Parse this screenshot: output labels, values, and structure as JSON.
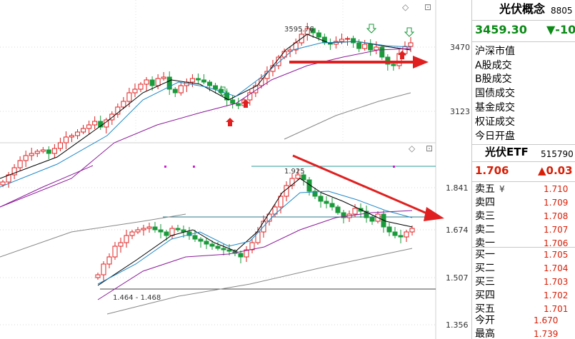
{
  "main_chart": {
    "high_label": "3595.76",
    "price_ticks": [
      "3470",
      "3123"
    ]
  },
  "etf_chart": {
    "high_label": "1.925",
    "low_label": "1.464 - 1.468",
    "price_ticks": [
      "1.841",
      "1.674",
      "1.507",
      "1.356"
    ]
  },
  "controls": {
    "diamond": "◇",
    "close": "⊡"
  },
  "panel": {
    "index_name": "光伏概念",
    "index_code": "8805",
    "index_price": "3459.30",
    "index_change": "▼-10",
    "stats": [
      "沪深市值",
      "A股成交",
      "B股成交",
      "国债成交",
      "基金成交",
      "权证成交"
    ],
    "open_label": "今日开盘",
    "etf_name": "光伏ETF",
    "etf_code": "515790",
    "etf_price": "1.706",
    "etf_change": "▲0.03",
    "sell": [
      {
        "label": "卖五",
        "price": "1.710",
        "mark": "¥"
      },
      {
        "label": "卖四",
        "price": "1.709"
      },
      {
        "label": "卖三",
        "price": "1.708"
      },
      {
        "label": "卖二",
        "price": "1.707"
      },
      {
        "label": "卖一",
        "price": "1.706"
      }
    ],
    "buy": [
      {
        "label": "买一",
        "price": "1.705"
      },
      {
        "label": "买二",
        "price": "1.704"
      },
      {
        "label": "买三",
        "price": "1.703"
      },
      {
        "label": "买四",
        "price": "1.702"
      },
      {
        "label": "买五",
        "price": "1.701"
      }
    ],
    "today_open_label": "今开",
    "today_open_value": "1.670",
    "today_high_label": "最高",
    "today_high_value": "1.739"
  },
  "colors": {
    "up": "#e02020",
    "down": "#1a9a3a",
    "ma5": "#000000",
    "ma10": "#1e88c8",
    "ma20": "#8c1a9a",
    "ma60": "#888888",
    "arrow": "#e02020"
  }
}
